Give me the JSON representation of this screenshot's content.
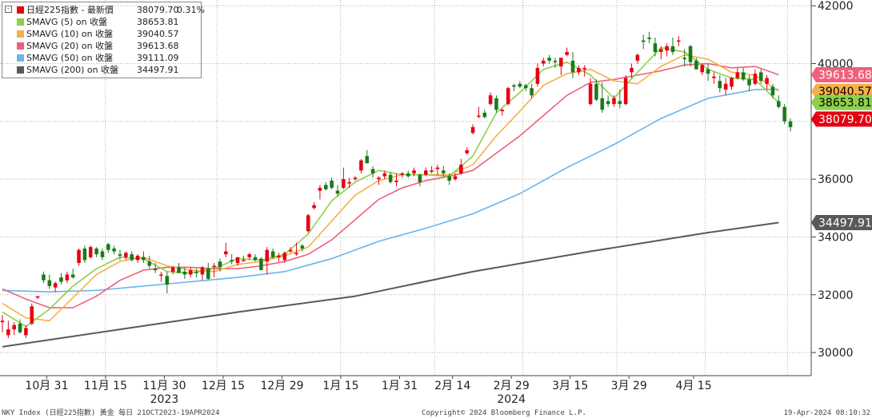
{
  "legend": {
    "toggle": "-",
    "rows": [
      {
        "name": "日經225指數 - 最新價",
        "value": "38079.70",
        "pct": "0.31%",
        "color": "#e60012"
      },
      {
        "name": "SMAVG (5)  on 收盤",
        "value": "38653.81",
        "color": "#8ed04c"
      },
      {
        "name": "SMAVG (10)  on 收盤",
        "value": "39040.57",
        "color": "#f6b04a"
      },
      {
        "name": "SMAVG (20)  on 收盤",
        "value": "39613.68",
        "color": "#f0607a"
      },
      {
        "name": "SMAVG (50)  on 收盤",
        "value": "39111.09",
        "color": "#6ab4ea"
      },
      {
        "name": "SMAVG (200)  on 收盤",
        "value": "34497.91",
        "color": "#595959"
      }
    ]
  },
  "colors": {
    "up": "#e60012",
    "down": "#1a7a1a",
    "grid": "#b0b0b0",
    "sma5": "#8ed04c",
    "sma10": "#f6b04a",
    "sma20": "#f0607a",
    "sma50": "#6ab4ea",
    "sma200": "#595959"
  },
  "axis_labels": {
    "x_ticks": [
      "10月 31",
      "11月 15",
      "11月 30",
      "12月 15",
      "12月 29",
      "1月 15",
      "1月 31",
      "2月 14",
      "2月 29",
      "3月 15",
      "3月 29",
      "4月 15"
    ],
    "years": [
      "2023",
      "2024"
    ],
    "y_ticks": [
      "42000",
      "40000",
      "38000",
      "36000",
      "34000",
      "32000",
      "30000"
    ]
  },
  "price_labels": [
    {
      "value": "39613.68",
      "color": "#f0607a",
      "text_color": "#ffffff"
    },
    {
      "value": "39040.57",
      "color": "#f6b04a",
      "text_color": "#000000"
    },
    {
      "value": "38653.81",
      "color": "#8ed04c",
      "text_color": "#000000"
    },
    {
      "value": "38079.70",
      "color": "#e60012",
      "text_color": "#ffffff"
    },
    {
      "value": "34497.91",
      "color": "#595959",
      "text_color": "#ffffff"
    }
  ],
  "footer": {
    "left": "NKY Index (日經225指數) 黃金  每日 21OCT2023-19APR2024",
    "center": "Copyright© 2024 Bloomberg Finance L.P.",
    "right": "19-Apr-2024 08:10:32"
  },
  "chart_data": {
    "type": "candlestick",
    "title": "日經225指數",
    "y_range": [
      29200,
      42200
    ],
    "y_ticks": [
      30000,
      32000,
      34000,
      36000,
      38000,
      40000,
      42000
    ],
    "x_ticks": [
      "10月 31",
      "11月 15",
      "11月 30",
      "12月 15",
      "12月 29",
      "1月 15",
      "1月 31",
      "2月 14",
      "2月 29",
      "3月 15",
      "3月 29",
      "4月 15"
    ],
    "candles_ohlc": [
      [
        31050,
        31300,
        30700,
        31100
      ],
      [
        30600,
        31100,
        30500,
        30800
      ],
      [
        30800,
        31050,
        30600,
        30950
      ],
      [
        31000,
        31150,
        30650,
        30700
      ],
      [
        30600,
        30950,
        30500,
        30850
      ],
      [
        31000,
        31700,
        30950,
        31600
      ],
      [
        31900,
        31950,
        31850,
        31950
      ],
      [
        32700,
        32800,
        32400,
        32500
      ],
      [
        32500,
        32700,
        32200,
        32300
      ],
      [
        32250,
        32450,
        32100,
        32400
      ],
      [
        32600,
        32750,
        32350,
        32450
      ],
      [
        32500,
        32800,
        32400,
        32700
      ],
      [
        32700,
        32900,
        32550,
        32600
      ],
      [
        33100,
        33600,
        33000,
        33550
      ],
      [
        33600,
        33700,
        33100,
        33200
      ],
      [
        33300,
        33700,
        33250,
        33650
      ],
      [
        33600,
        33650,
        33300,
        33400
      ],
      [
        33500,
        33600,
        33200,
        33300
      ],
      [
        33750,
        33800,
        33450,
        33550
      ],
      [
        33600,
        33700,
        33400,
        33500
      ],
      [
        33400,
        33550,
        33200,
        33350
      ],
      [
        33300,
        33500,
        33200,
        33450
      ],
      [
        33400,
        33500,
        33150,
        33200
      ],
      [
        33200,
        33400,
        33100,
        33350
      ],
      [
        33300,
        33500,
        33100,
        33200
      ],
      [
        33150,
        33350,
        32900,
        33000
      ],
      [
        32900,
        33100,
        32750,
        32850
      ],
      [
        32700,
        32800,
        32450,
        32700
      ],
      [
        32650,
        32800,
        32050,
        32350
      ],
      [
        32800,
        33000,
        32700,
        32950
      ],
      [
        32950,
        33100,
        32900,
        32750
      ],
      [
        32800,
        32950,
        32550,
        32700
      ],
      [
        32700,
        32950,
        32600,
        32850
      ],
      [
        32800,
        32900,
        32600,
        32750
      ],
      [
        32700,
        33000,
        32500,
        32950
      ],
      [
        32900,
        33100,
        32500,
        32550
      ],
      [
        32950,
        33100,
        32600,
        33000
      ],
      [
        33150,
        33250,
        32800,
        32950
      ],
      [
        33400,
        33800,
        33300,
        33500
      ],
      [
        33200,
        33400,
        33050,
        33150
      ],
      [
        33100,
        33300,
        33000,
        33300
      ],
      [
        33200,
        33350,
        33150,
        33200
      ],
      [
        33300,
        33450,
        33200,
        33400
      ],
      [
        33300,
        33400,
        33150,
        33200
      ],
      [
        33250,
        33300,
        32900,
        32850
      ],
      [
        33150,
        33650,
        32700,
        33550
      ],
      [
        33500,
        33600,
        33250,
        33300
      ],
      [
        33300,
        33450,
        33150,
        33350
      ],
      [
        33200,
        33500,
        33100,
        33450
      ],
      [
        33500,
        33650,
        33450,
        33550
      ],
      [
        33400,
        33800,
        33350,
        33450
      ],
      [
        33700,
        33750,
        33500,
        33600
      ],
      [
        34200,
        34800,
        34150,
        34750
      ],
      [
        35000,
        35200,
        34950,
        35100
      ],
      [
        35600,
        35800,
        35300,
        35700
      ],
      [
        35800,
        35900,
        35600,
        35650
      ],
      [
        35950,
        36050,
        35650,
        35700
      ],
      [
        35600,
        35800,
        35400,
        35500
      ],
      [
        35700,
        36400,
        35650,
        36000
      ],
      [
        35850,
        36050,
        35700,
        35900
      ],
      [
        36000,
        36100,
        35950,
        36050
      ],
      [
        36300,
        36700,
        36200,
        36650
      ],
      [
        36800,
        37000,
        36550,
        36550
      ],
      [
        36350,
        36450,
        36050,
        36200
      ],
      [
        36000,
        36100,
        35800,
        36050
      ],
      [
        36100,
        36300,
        36000,
        36200
      ],
      [
        36150,
        36250,
        35850,
        35900
      ],
      [
        35900,
        36200,
        35750,
        35950
      ],
      [
        36150,
        36250,
        36050,
        36200
      ],
      [
        36200,
        36300,
        36050,
        36100
      ],
      [
        36200,
        36400,
        36100,
        36300
      ],
      [
        36150,
        36200,
        35750,
        35900
      ],
      [
        36150,
        36400,
        36100,
        36300
      ],
      [
        36300,
        36450,
        36200,
        36300
      ],
      [
        36350,
        36500,
        36150,
        36400
      ],
      [
        36300,
        36450,
        36100,
        36200
      ],
      [
        36100,
        36200,
        35800,
        35950
      ],
      [
        36000,
        36200,
        35950,
        36100
      ],
      [
        36200,
        36700,
        36150,
        36500
      ],
      [
        36900,
        37100,
        36850,
        37000
      ],
      [
        37600,
        37900,
        37550,
        37800
      ],
      [
        38200,
        38500,
        38100,
        38200
      ],
      [
        38300,
        38400,
        38100,
        38150
      ],
      [
        38600,
        39000,
        38550,
        38900
      ],
      [
        38800,
        38900,
        38300,
        38400
      ],
      [
        38350,
        38450,
        38200,
        38400
      ],
      [
        38600,
        39200,
        38550,
        39150
      ],
      [
        39250,
        39300,
        39050,
        39200
      ],
      [
        39300,
        39400,
        39150,
        39200
      ],
      [
        39250,
        39300,
        39050,
        39150
      ],
      [
        39150,
        39300,
        38800,
        38900
      ],
      [
        39300,
        40000,
        39200,
        39850
      ],
      [
        40000,
        40200,
        39900,
        40100
      ],
      [
        40200,
        40300,
        40000,
        40100
      ],
      [
        40100,
        40200,
        39850,
        40050
      ],
      [
        39900,
        40200,
        39600,
        40200
      ],
      [
        40300,
        40550,
        40250,
        40400
      ],
      [
        40100,
        40400,
        39500,
        39700
      ],
      [
        39700,
        39950,
        39600,
        39850
      ],
      [
        39800,
        39950,
        39550,
        39850
      ],
      [
        38600,
        39500,
        38550,
        39300
      ],
      [
        39300,
        39450,
        38700,
        38750
      ],
      [
        38800,
        39350,
        38300,
        38400
      ],
      [
        38700,
        38900,
        38500,
        38600
      ],
      [
        38600,
        38900,
        38500,
        38800
      ],
      [
        38700,
        39100,
        38450,
        38600
      ],
      [
        38600,
        39600,
        38550,
        39500
      ],
      [
        39700,
        40000,
        39500,
        39850
      ],
      [
        40100,
        40350,
        40000,
        40300
      ],
      [
        40800,
        41000,
        40500,
        40750
      ],
      [
        40900,
        41100,
        40700,
        40850
      ],
      [
        40700,
        40900,
        40250,
        40400
      ],
      [
        40400,
        40600,
        40150,
        40500
      ],
      [
        40450,
        40700,
        40250,
        40600
      ],
      [
        40600,
        40900,
        40300,
        40400
      ],
      [
        40800,
        40950,
        40600,
        40800
      ],
      [
        40200,
        40500,
        39900,
        40150
      ],
      [
        40600,
        40650,
        39900,
        40050
      ],
      [
        40100,
        40200,
        39800,
        39800
      ],
      [
        39700,
        40000,
        39600,
        39950
      ],
      [
        39800,
        40000,
        39400,
        39650
      ],
      [
        39500,
        39700,
        39300,
        39550
      ],
      [
        39400,
        39600,
        39000,
        39150
      ],
      [
        39100,
        39500,
        38900,
        39300
      ],
      [
        39200,
        39550,
        39100,
        39500
      ],
      [
        39500,
        39850,
        39450,
        39700
      ],
      [
        39700,
        39850,
        39400,
        39450
      ],
      [
        39450,
        39600,
        39050,
        39250
      ],
      [
        39300,
        39800,
        39250,
        39650
      ],
      [
        39700,
        39800,
        39300,
        39400
      ],
      [
        39300,
        39600,
        39100,
        39500
      ],
      [
        39200,
        39300,
        38800,
        38900
      ],
      [
        38700,
        38900,
        38450,
        38500
      ],
      [
        38500,
        38600,
        37900,
        38000
      ],
      [
        38000,
        38100,
        37650,
        37800
      ]
    ],
    "sma5": [
      [
        0,
        31400
      ],
      [
        4,
        30900
      ],
      [
        8,
        31500
      ],
      [
        12,
        32300
      ],
      [
        16,
        32900
      ],
      [
        20,
        33300
      ],
      [
        24,
        33250
      ],
      [
        28,
        32800
      ],
      [
        32,
        32750
      ],
      [
        36,
        32900
      ],
      [
        40,
        33250
      ],
      [
        44,
        33200
      ],
      [
        48,
        33400
      ],
      [
        52,
        34100
      ],
      [
        56,
        35250
      ],
      [
        60,
        35900
      ],
      [
        64,
        36300
      ],
      [
        68,
        36150
      ],
      [
        72,
        36150
      ],
      [
        76,
        36100
      ],
      [
        80,
        36800
      ],
      [
        84,
        38300
      ],
      [
        88,
        39000
      ],
      [
        92,
        39800
      ],
      [
        96,
        40050
      ],
      [
        100,
        39600
      ],
      [
        104,
        38800
      ],
      [
        108,
        39700
      ],
      [
        112,
        40550
      ],
      [
        116,
        40400
      ],
      [
        120,
        39800
      ],
      [
        124,
        39500
      ],
      [
        128,
        39450
      ],
      [
        132,
        38650
      ]
    ],
    "sma10": [
      [
        0,
        31700
      ],
      [
        4,
        31200
      ],
      [
        8,
        31100
      ],
      [
        12,
        31900
      ],
      [
        16,
        32700
      ],
      [
        20,
        33150
      ],
      [
        24,
        33300
      ],
      [
        28,
        33000
      ],
      [
        32,
        32850
      ],
      [
        36,
        32800
      ],
      [
        40,
        33050
      ],
      [
        44,
        33150
      ],
      [
        48,
        33350
      ],
      [
        52,
        33650
      ],
      [
        56,
        34550
      ],
      [
        60,
        35450
      ],
      [
        64,
        35950
      ],
      [
        68,
        36150
      ],
      [
        72,
        36150
      ],
      [
        76,
        36150
      ],
      [
        80,
        36500
      ],
      [
        84,
        37500
      ],
      [
        88,
        38350
      ],
      [
        92,
        39250
      ],
      [
        96,
        39650
      ],
      [
        100,
        39800
      ],
      [
        104,
        39400
      ],
      [
        108,
        39300
      ],
      [
        112,
        39900
      ],
      [
        116,
        40300
      ],
      [
        120,
        40150
      ],
      [
        124,
        39700
      ],
      [
        128,
        39600
      ],
      [
        132,
        39040
      ]
    ],
    "sma20": [
      [
        0,
        32200
      ],
      [
        4,
        31850
      ],
      [
        8,
        31550
      ],
      [
        12,
        31550
      ],
      [
        16,
        31950
      ],
      [
        20,
        32500
      ],
      [
        24,
        32850
      ],
      [
        28,
        32950
      ],
      [
        32,
        32950
      ],
      [
        36,
        32900
      ],
      [
        40,
        32900
      ],
      [
        44,
        33000
      ],
      [
        48,
        33150
      ],
      [
        52,
        33400
      ],
      [
        56,
        33900
      ],
      [
        60,
        34600
      ],
      [
        64,
        35300
      ],
      [
        68,
        35700
      ],
      [
        72,
        35950
      ],
      [
        76,
        36100
      ],
      [
        80,
        36300
      ],
      [
        84,
        36900
      ],
      [
        88,
        37500
      ],
      [
        92,
        38200
      ],
      [
        96,
        38900
      ],
      [
        100,
        39350
      ],
      [
        104,
        39450
      ],
      [
        108,
        39600
      ],
      [
        112,
        39750
      ],
      [
        116,
        39950
      ],
      [
        120,
        40000
      ],
      [
        124,
        39850
      ],
      [
        128,
        39900
      ],
      [
        132,
        39613
      ]
    ],
    "sma50": [
      [
        0,
        32150
      ],
      [
        8,
        32100
      ],
      [
        16,
        32150
      ],
      [
        24,
        32300
      ],
      [
        32,
        32450
      ],
      [
        40,
        32600
      ],
      [
        48,
        32800
      ],
      [
        56,
        33250
      ],
      [
        64,
        33850
      ],
      [
        72,
        34300
      ],
      [
        80,
        34800
      ],
      [
        88,
        35500
      ],
      [
        96,
        36400
      ],
      [
        104,
        37200
      ],
      [
        112,
        38100
      ],
      [
        120,
        38800
      ],
      [
        128,
        39100
      ],
      [
        132,
        39111
      ]
    ],
    "sma200": [
      [
        0,
        30200
      ],
      [
        20,
        30800
      ],
      [
        40,
        31400
      ],
      [
        60,
        31950
      ],
      [
        80,
        32800
      ],
      [
        100,
        33500
      ],
      [
        120,
        34150
      ],
      [
        132,
        34498
      ]
    ]
  }
}
